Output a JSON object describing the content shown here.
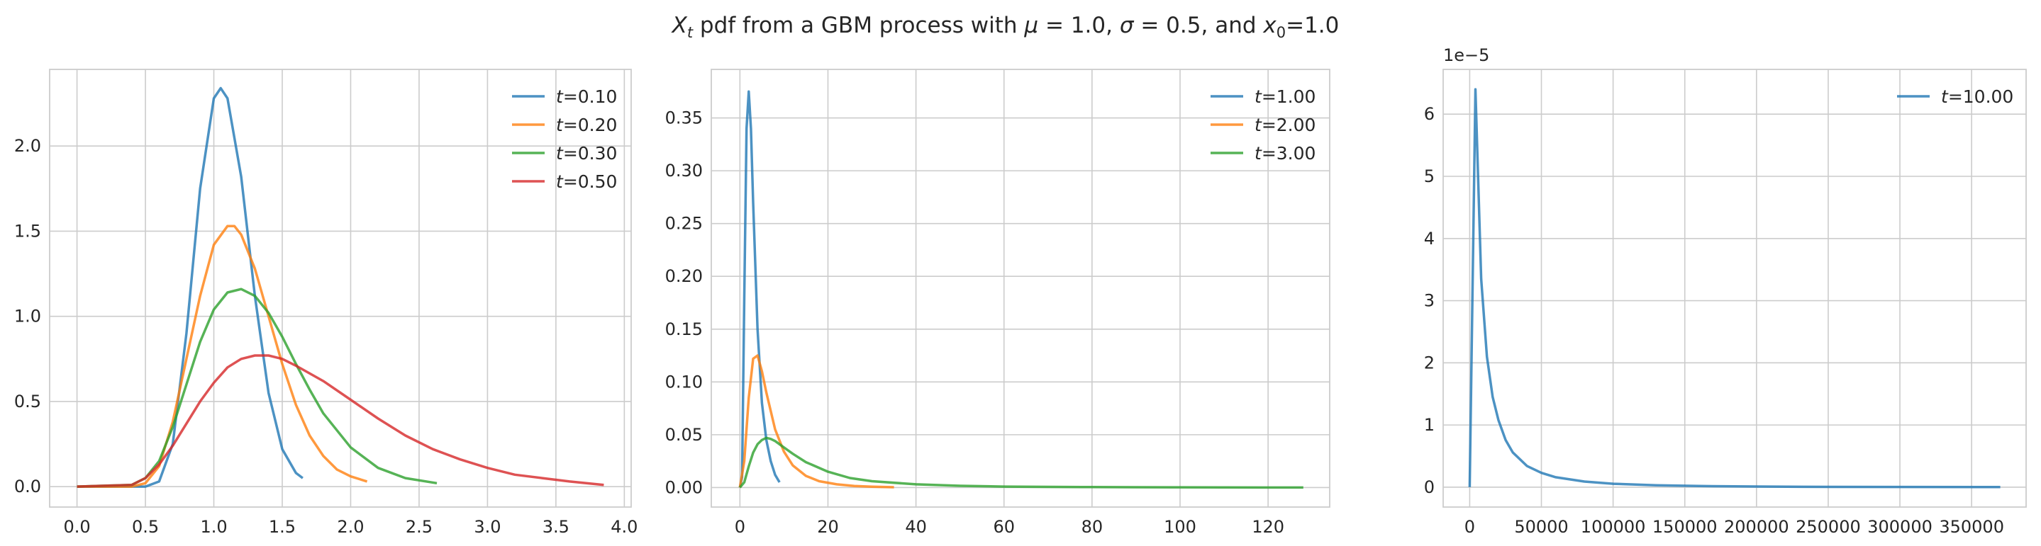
{
  "figure": {
    "title": {
      "prefix": "X",
      "prefix_sub": "t",
      "middle": " pdf from a GBM process with ",
      "mu_sym": "μ",
      "mu_eq": " = 1.0, ",
      "sigma_sym": "σ",
      "sigma_eq": " = 0.5, and ",
      "x0_sym": "x",
      "x0_sub": "0",
      "x0_eq": "=1.0"
    }
  },
  "chart_data": [
    {
      "type": "line",
      "xlim": [
        -0.2,
        4.05
      ],
      "ylim": [
        -0.12,
        2.45
      ],
      "xticks": [
        0.0,
        0.5,
        1.0,
        1.5,
        2.0,
        2.5,
        3.0,
        3.5,
        4.0
      ],
      "xtick_labels": [
        "0.0",
        "0.5",
        "1.0",
        "1.5",
        "2.0",
        "2.5",
        "3.0",
        "3.5",
        "4.0"
      ],
      "yticks": [
        0.0,
        0.5,
        1.0,
        1.5,
        2.0
      ],
      "ytick_labels": [
        "0.0",
        "0.5",
        "1.0",
        "1.5",
        "2.0"
      ],
      "y_offset_label": "",
      "grid": true,
      "legend_position": "upper-right",
      "series": [
        {
          "name": "t=0.10",
          "legend_var": "t",
          "legend_rest": "=0.10",
          "color": "#1f77b4",
          "x": [
            0.0,
            0.5,
            0.6,
            0.7,
            0.8,
            0.9,
            1.0,
            1.05,
            1.1,
            1.2,
            1.3,
            1.4,
            1.5,
            1.6,
            1.65
          ],
          "y": [
            0.0,
            0.0,
            0.03,
            0.25,
            0.9,
            1.75,
            2.28,
            2.34,
            2.28,
            1.82,
            1.12,
            0.55,
            0.22,
            0.08,
            0.05
          ]
        },
        {
          "name": "t=0.20",
          "legend_var": "t",
          "legend_rest": "=0.20",
          "color": "#ff7f0e",
          "x": [
            0.0,
            0.4,
            0.5,
            0.6,
            0.7,
            0.8,
            0.9,
            1.0,
            1.1,
            1.15,
            1.2,
            1.3,
            1.4,
            1.5,
            1.6,
            1.7,
            1.8,
            1.9,
            2.0,
            2.12
          ],
          "y": [
            0.0,
            0.0,
            0.02,
            0.12,
            0.38,
            0.75,
            1.12,
            1.42,
            1.53,
            1.53,
            1.48,
            1.28,
            1.0,
            0.72,
            0.48,
            0.3,
            0.18,
            0.1,
            0.06,
            0.03
          ]
        },
        {
          "name": "t=0.30",
          "legend_var": "t",
          "legend_rest": "=0.30",
          "color": "#2ca02c",
          "x": [
            0.0,
            0.4,
            0.5,
            0.6,
            0.7,
            0.8,
            0.9,
            1.0,
            1.1,
            1.2,
            1.3,
            1.4,
            1.5,
            1.6,
            1.7,
            1.8,
            2.0,
            2.2,
            2.4,
            2.63
          ],
          "y": [
            0.0,
            0.01,
            0.05,
            0.15,
            0.35,
            0.6,
            0.85,
            1.04,
            1.14,
            1.16,
            1.12,
            1.02,
            0.88,
            0.72,
            0.57,
            0.43,
            0.23,
            0.11,
            0.05,
            0.02
          ]
        },
        {
          "name": "t=0.50",
          "legend_var": "t",
          "legend_rest": "=0.50",
          "color": "#d62728",
          "x": [
            0.0,
            0.4,
            0.5,
            0.6,
            0.7,
            0.8,
            0.9,
            1.0,
            1.1,
            1.2,
            1.3,
            1.4,
            1.5,
            1.6,
            1.8,
            2.0,
            2.2,
            2.4,
            2.6,
            2.8,
            3.0,
            3.2,
            3.4,
            3.6,
            3.85
          ],
          "y": [
            0.0,
            0.01,
            0.05,
            0.13,
            0.24,
            0.37,
            0.5,
            0.61,
            0.7,
            0.75,
            0.77,
            0.77,
            0.75,
            0.71,
            0.62,
            0.51,
            0.4,
            0.3,
            0.22,
            0.16,
            0.11,
            0.07,
            0.05,
            0.03,
            0.01
          ]
        }
      ]
    },
    {
      "type": "line",
      "xlim": [
        -6.5,
        134
      ],
      "ylim": [
        -0.0185,
        0.396
      ],
      "xticks": [
        0,
        20,
        40,
        60,
        80,
        100,
        120
      ],
      "xtick_labels": [
        "0",
        "20",
        "40",
        "60",
        "80",
        "100",
        "120"
      ],
      "yticks": [
        0.0,
        0.05,
        0.1,
        0.15,
        0.2,
        0.25,
        0.3,
        0.35
      ],
      "ytick_labels": [
        "0.00",
        "0.05",
        "0.10",
        "0.15",
        "0.20",
        "0.25",
        "0.30",
        "0.35"
      ],
      "y_offset_label": "",
      "grid": true,
      "legend_position": "upper-right",
      "series": [
        {
          "name": "t=1.00",
          "legend_var": "t",
          "legend_rest": "=1.00",
          "color": "#1f77b4",
          "x": [
            0.0,
            0.5,
            1.0,
            1.5,
            2.0,
            2.5,
            3.0,
            4.0,
            5.0,
            6.0,
            7.0,
            8.0,
            9.0
          ],
          "y": [
            0.0,
            0.01,
            0.18,
            0.34,
            0.375,
            0.34,
            0.27,
            0.15,
            0.08,
            0.045,
            0.025,
            0.012,
            0.005
          ]
        },
        {
          "name": "t=2.00",
          "legend_var": "t",
          "legend_rest": "=2.00",
          "color": "#ff7f0e",
          "x": [
            0.0,
            1.0,
            2.0,
            3.0,
            4.0,
            5.0,
            6.0,
            8.0,
            10.0,
            12.0,
            15.0,
            18.0,
            22.0,
            26.0,
            30.0,
            35.0
          ],
          "y": [
            0.0,
            0.025,
            0.085,
            0.122,
            0.125,
            0.11,
            0.09,
            0.055,
            0.034,
            0.021,
            0.011,
            0.006,
            0.003,
            0.0015,
            0.0008,
            0.0003
          ]
        },
        {
          "name": "t=3.00",
          "legend_var": "t",
          "legend_rest": "=3.00",
          "color": "#2ca02c",
          "x": [
            0.0,
            1.0,
            2.0,
            3.0,
            4.0,
            5.0,
            6.0,
            7.0,
            8.0,
            10.0,
            12.0,
            15.0,
            20.0,
            25.0,
            30.0,
            40.0,
            50.0,
            60.0,
            70.0,
            80.0,
            90.0,
            100.0,
            110.0,
            128.0
          ],
          "y": [
            0.0,
            0.005,
            0.02,
            0.033,
            0.041,
            0.045,
            0.047,
            0.046,
            0.044,
            0.038,
            0.032,
            0.024,
            0.015,
            0.009,
            0.006,
            0.003,
            0.0016,
            0.0009,
            0.0006,
            0.0004,
            0.0003,
            0.0002,
            0.0001,
            0.0
          ]
        }
      ]
    },
    {
      "type": "line",
      "xlim": [
        -18500,
        388000
      ],
      "ylim": [
        -3.2e-06,
        6.72e-05
      ],
      "xticks": [
        0,
        50000,
        100000,
        150000,
        200000,
        250000,
        300000,
        350000
      ],
      "xtick_labels": [
        "0",
        "50000",
        "100000",
        "150000",
        "200000",
        "250000",
        "300000",
        "350000"
      ],
      "yticks": [
        0,
        1e-05,
        2e-05,
        3e-05,
        4e-05,
        5e-05,
        6e-05
      ],
      "ytick_labels": [
        "0",
        "1",
        "2",
        "3",
        "4",
        "5",
        "6"
      ],
      "y_offset_label": "1e−5",
      "grid": true,
      "legend_position": "upper-right",
      "series": [
        {
          "name": "t=10.00",
          "legend_var": "t",
          "legend_rest": "=10.00",
          "color": "#1f77b4",
          "x": [
            0,
            4000,
            8000,
            12000,
            16000,
            20000,
            25000,
            30000,
            40000,
            50000,
            60000,
            80000,
            100000,
            130000,
            160000,
            200000,
            250000,
            300000,
            370000
          ],
          "y": [
            0,
            6.4e-05,
            3.35e-05,
            2.1e-05,
            1.45e-05,
            1.08e-05,
            7.6e-06,
            5.6e-06,
            3.4e-06,
            2.3e-06,
            1.6e-06,
            9e-07,
            5.5e-07,
            3e-07,
            1.8e-07,
            1e-07,
            5e-08,
            3e-08,
            1e-08
          ]
        }
      ]
    }
  ]
}
